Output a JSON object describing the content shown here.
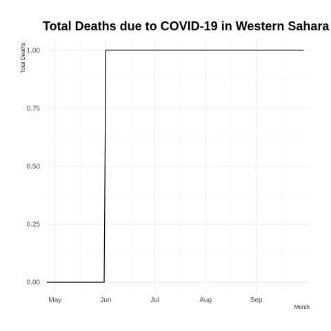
{
  "chart_data": {
    "type": "line",
    "step": true,
    "title": "Total Deaths due to COVID-19 in Western Sahara",
    "xlabel": "Month",
    "ylabel": "Total Deaths",
    "grid": true,
    "legend": "none",
    "colors": {
      "line": "#000000",
      "grid": "#e6e6e6"
    },
    "xlim": [
      "2020-04-26",
      "2020-10-04"
    ],
    "ylim": [
      -0.05,
      1.05
    ],
    "x_ticks": [
      {
        "date": "2020-05-01",
        "label": "May"
      },
      {
        "date": "2020-06-01",
        "label": "Jun"
      },
      {
        "date": "2020-07-01",
        "label": "Jul"
      },
      {
        "date": "2020-08-01",
        "label": "Aug"
      },
      {
        "date": "2020-09-01",
        "label": "Sep"
      }
    ],
    "y_ticks": [
      {
        "value": 0,
        "label": "0.00"
      },
      {
        "value": 0.25,
        "label": "0.25"
      },
      {
        "value": 0.5,
        "label": "0.50"
      },
      {
        "value": 0.75,
        "label": "0.75"
      },
      {
        "value": 1,
        "label": "1.00"
      }
    ],
    "series": [
      {
        "x": [
          "2020-04-26",
          "2020-05-31",
          "2020-06-01",
          "2020-09-30"
        ],
        "values": [
          0,
          0,
          1,
          1
        ]
      }
    ]
  }
}
